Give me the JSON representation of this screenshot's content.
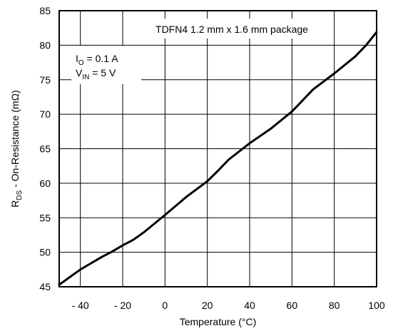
{
  "chart_data": {
    "type": "line",
    "xlabel": "Temperature (°C)",
    "ylabel": {
      "main": "R",
      "sub": "DS",
      "rest": " - On-Resistance (mΩ)"
    },
    "xlim": [
      -50,
      100
    ],
    "ylim": [
      45,
      85
    ],
    "xticks": [
      -40,
      -20,
      0,
      20,
      40,
      60,
      80,
      100
    ],
    "xtick_labels": [
      "- 40",
      "- 20",
      "0",
      "20",
      "40",
      "60",
      "80",
      "100"
    ],
    "yticks": [
      45,
      50,
      55,
      60,
      65,
      70,
      75,
      80,
      85
    ],
    "ytick_labels": [
      "45",
      "50",
      "55",
      "60",
      "65",
      "70",
      "75",
      "80",
      "85"
    ],
    "grid": true,
    "annotations": {
      "package": "TDFN4 1.2 mm x 1.6 mm package",
      "io": {
        "main": "I",
        "sub": "O",
        "rest": " = 0.1 A"
      },
      "vin": {
        "main": "V",
        "sub": "IN",
        "rest": " = 5 V"
      }
    },
    "series": [
      {
        "x": [
          -50,
          -40,
          -30,
          -25,
          -20,
          -15,
          -10,
          0,
          10,
          20,
          25,
          30,
          40,
          50,
          60,
          65,
          70,
          80,
          90,
          95,
          100
        ],
        "y": [
          45.3,
          47.5,
          49.3,
          50.1,
          51.0,
          51.8,
          52.9,
          55.4,
          58.0,
          60.3,
          61.8,
          63.4,
          65.8,
          67.9,
          70.4,
          72.0,
          73.6,
          75.9,
          78.4,
          80.0,
          81.9
        ]
      }
    ]
  }
}
